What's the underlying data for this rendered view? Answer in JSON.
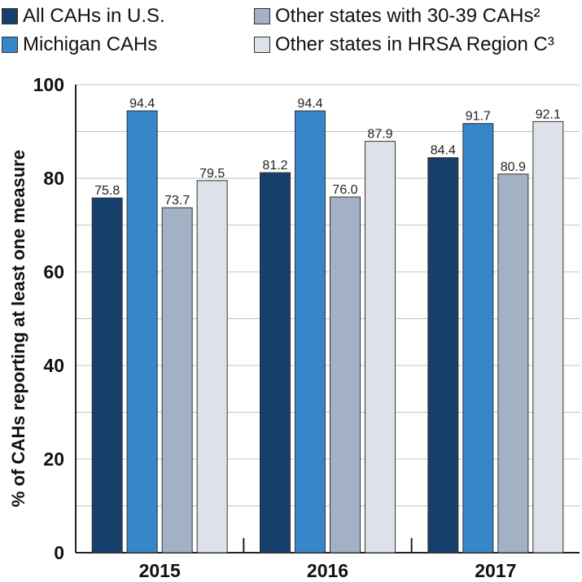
{
  "legend": [
    {
      "label": "All CAHs in U.S.",
      "color": "#173f6b"
    },
    {
      "label": "Michigan CAHs",
      "color": "#3686c9"
    },
    {
      "label": "Other states with 30-39 CAHs²",
      "color": "#a2b2c4"
    },
    {
      "label": "Other states in HRSA Region C³",
      "color": "#dde2ea"
    }
  ],
  "chart_data": {
    "type": "bar",
    "categories": [
      "2015",
      "2016",
      "2017"
    ],
    "series": [
      {
        "name": "All CAHs in U.S.",
        "values": [
          75.8,
          81.2,
          84.4
        ],
        "color": "#173f6b"
      },
      {
        "name": "Michigan CAHs",
        "values": [
          94.4,
          94.4,
          91.7
        ],
        "color": "#3686c9"
      },
      {
        "name": "Other states with 30-39 CAHs²",
        "values": [
          73.7,
          76.0,
          80.9
        ],
        "color": "#a2b2c4"
      },
      {
        "name": "Other states in HRSA Region C³",
        "values": [
          79.5,
          87.9,
          92.1
        ],
        "color": "#dde2ea"
      }
    ],
    "ylabel": "% of CAHs reporting at least one measure",
    "xlabel": "",
    "ylim": [
      0,
      100
    ],
    "yticks": [
      0,
      20,
      40,
      60,
      80,
      100
    ],
    "grid": true,
    "data_labels": true,
    "legend_position": "top"
  }
}
